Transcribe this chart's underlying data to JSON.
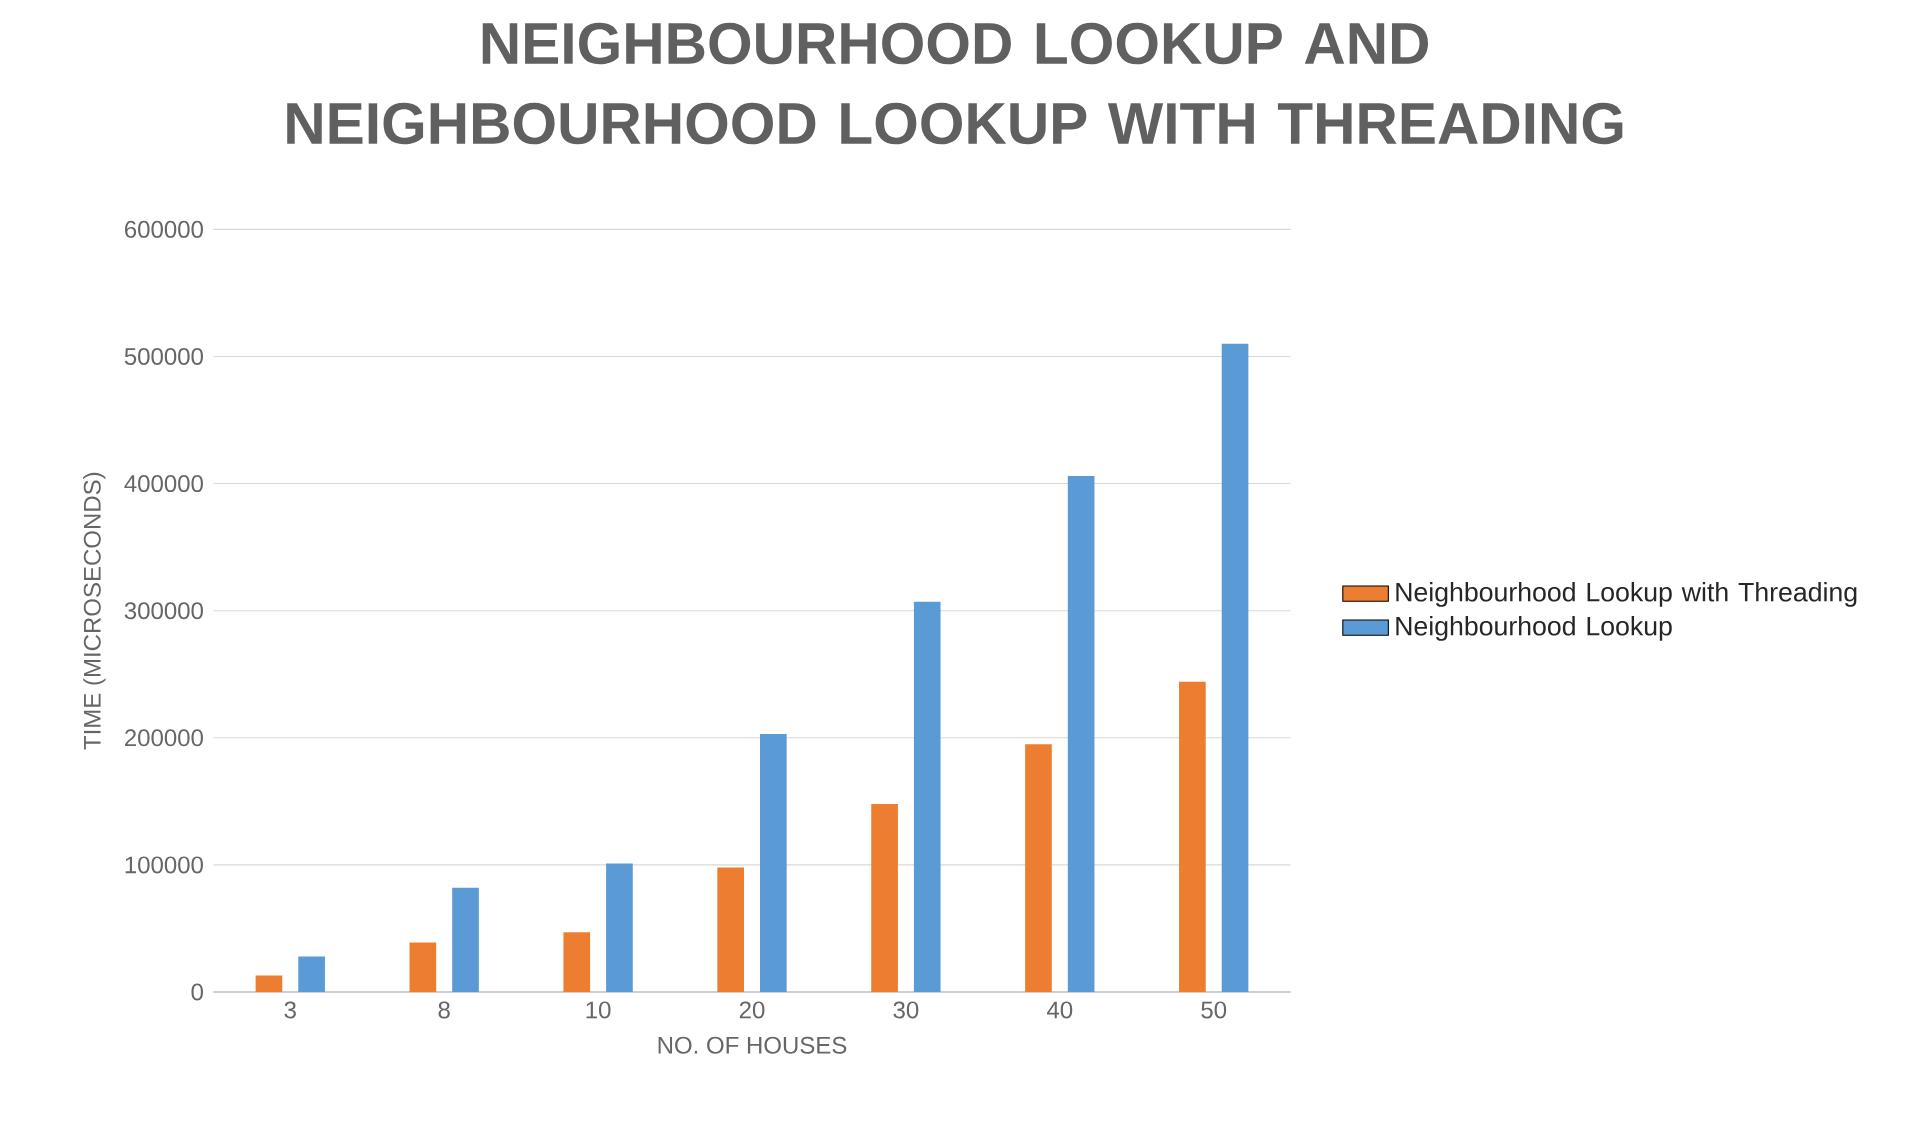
{
  "chart_data": {
    "type": "bar",
    "title": "NEIGHBOURHOOD LOOKUP AND NEIGHBOURHOOD LOOKUP WITH THREADING",
    "xlabel": "NO. OF HOUSES",
    "ylabel": "TIME (MICROSECONDS)",
    "categories": [
      "3",
      "8",
      "10",
      "20",
      "30",
      "40",
      "50"
    ],
    "series": [
      {
        "name": "Neighbourhood Lookup with Threading",
        "color": "#ed7d31",
        "values": [
          13000,
          39000,
          47000,
          98000,
          148000,
          195000,
          244000
        ]
      },
      {
        "name": "Neighbourhood Lookup",
        "color": "#5b9bd5",
        "values": [
          28000,
          82000,
          101000,
          203000,
          307000,
          406000,
          510000
        ]
      }
    ],
    "ylim": [
      0,
      600000
    ],
    "yticks": [
      0,
      100000,
      200000,
      300000,
      400000,
      500000,
      600000
    ],
    "grid": "y",
    "legend": "right"
  }
}
